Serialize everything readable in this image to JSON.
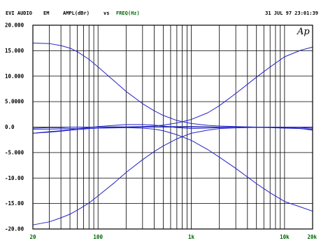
{
  "header": {
    "left": "EVI AUDIO",
    "left2": "EM",
    "y_quantity": "AMPL(dBr)",
    "vs": "vs",
    "x_quantity": "FREQ(Hz)",
    "timestamp": "31 JUL 97 23:01:39"
  },
  "watermark": "Ap",
  "colors": {
    "curve": "#2323c8",
    "grid": "#000000",
    "header_dark": "#000000",
    "header_green": "#006400",
    "tick_green": "#006400"
  },
  "chart_data": {
    "type": "line",
    "x_scale": "log",
    "xlim": [
      20,
      20000
    ],
    "ylim": [
      -20,
      20
    ],
    "grid": true,
    "xticks": [
      {
        "value": 20,
        "label": "20"
      },
      {
        "value": 100,
        "label": "100"
      },
      {
        "value": 1000,
        "label": "1k"
      },
      {
        "value": 10000,
        "label": "10k"
      },
      {
        "value": 20000,
        "label": "20k"
      }
    ],
    "yticks": [
      {
        "value": 20,
        "label": "20.000"
      },
      {
        "value": 15,
        "label": "15.000"
      },
      {
        "value": 10,
        "label": "10.000"
      },
      {
        "value": 5,
        "label": "5.0000"
      },
      {
        "value": 0,
        "label": "0.0"
      },
      {
        "value": -5,
        "label": "-5.000"
      },
      {
        "value": -10,
        "label": "-10.00"
      },
      {
        "value": -15,
        "label": "-15.00"
      },
      {
        "value": -20,
        "label": "-20.00"
      }
    ],
    "series": [
      {
        "x": [
          20,
          30,
          40,
          50,
          60,
          80,
          100,
          150,
          200,
          300,
          400,
          500,
          700,
          1000,
          1500,
          2000,
          3000,
          5000,
          7000,
          10000,
          15000,
          20000
        ],
        "y": [
          16.5,
          16.4,
          16.0,
          15.5,
          14.8,
          13.3,
          11.8,
          9.0,
          7.0,
          4.6,
          3.2,
          2.3,
          1.3,
          0.7,
          0.35,
          0.2,
          0.1,
          0.0,
          0.0,
          0.0,
          -0.1,
          -0.2
        ]
      },
      {
        "x": [
          20,
          30,
          40,
          50,
          60,
          80,
          100,
          150,
          200,
          300,
          400,
          500,
          700,
          1000,
          1500,
          2000,
          3000,
          5000,
          7000,
          10000,
          15000,
          20000
        ],
        "y": [
          -19.2,
          -18.6,
          -17.8,
          -17.1,
          -16.3,
          -14.9,
          -13.5,
          -10.9,
          -8.9,
          -6.4,
          -4.8,
          -3.7,
          -2.3,
          -1.2,
          -0.6,
          -0.3,
          -0.15,
          -0.05,
          0.0,
          0.0,
          0.0,
          0.0
        ]
      },
      {
        "x": [
          20,
          30,
          40,
          50,
          60,
          80,
          100,
          150,
          200,
          300,
          400,
          500,
          700,
          1000,
          1500,
          2000,
          3000,
          5000,
          7000,
          10000,
          15000,
          20000
        ],
        "y": [
          -1.2,
          -1.0,
          -0.8,
          -0.6,
          -0.5,
          -0.3,
          -0.2,
          -0.1,
          -0.1,
          -0.2,
          -0.4,
          -0.7,
          -1.5,
          -2.6,
          -4.4,
          -5.9,
          -8.1,
          -11.1,
          -12.9,
          -14.6,
          -15.7,
          -16.5
        ]
      },
      {
        "x": [
          20,
          30,
          40,
          50,
          60,
          80,
          100,
          150,
          200,
          300,
          400,
          500,
          700,
          1000,
          1500,
          2000,
          3000,
          5000,
          7000,
          10000,
          15000,
          20000
        ],
        "y": [
          -0.2,
          -0.1,
          -0.1,
          0.0,
          0.0,
          0.0,
          0.0,
          0.05,
          0.05,
          0.1,
          0.2,
          0.4,
          0.8,
          1.5,
          2.8,
          4.2,
          6.6,
          9.8,
          11.8,
          13.8,
          15.1,
          15.7
        ]
      },
      {
        "x": [
          20,
          30,
          40,
          50,
          60,
          80,
          100,
          150,
          200,
          300,
          400,
          500,
          700,
          1000,
          1500,
          2000,
          3000,
          5000,
          7000,
          10000,
          15000,
          20000
        ],
        "y": [
          -1.2,
          -0.9,
          -0.7,
          -0.5,
          -0.3,
          -0.1,
          0.1,
          0.35,
          0.5,
          0.5,
          0.4,
          0.2,
          -0.1,
          -0.3,
          -0.2,
          -0.1,
          0.0,
          0.0,
          0.0,
          -0.1,
          -0.3,
          -0.6
        ]
      },
      {
        "x": [
          20,
          30,
          40,
          50,
          60,
          80,
          100,
          150,
          200,
          300,
          400,
          500,
          700,
          1000,
          1500,
          2000,
          3000,
          5000,
          7000,
          10000,
          15000,
          20000
        ],
        "y": [
          -0.4,
          -0.4,
          -0.35,
          -0.3,
          -0.3,
          -0.25,
          -0.2,
          -0.15,
          -0.1,
          0.0,
          0.05,
          0.1,
          0.1,
          0.1,
          0.05,
          0.0,
          0.0,
          -0.05,
          -0.1,
          -0.2,
          -0.3,
          -0.4
        ]
      }
    ]
  }
}
